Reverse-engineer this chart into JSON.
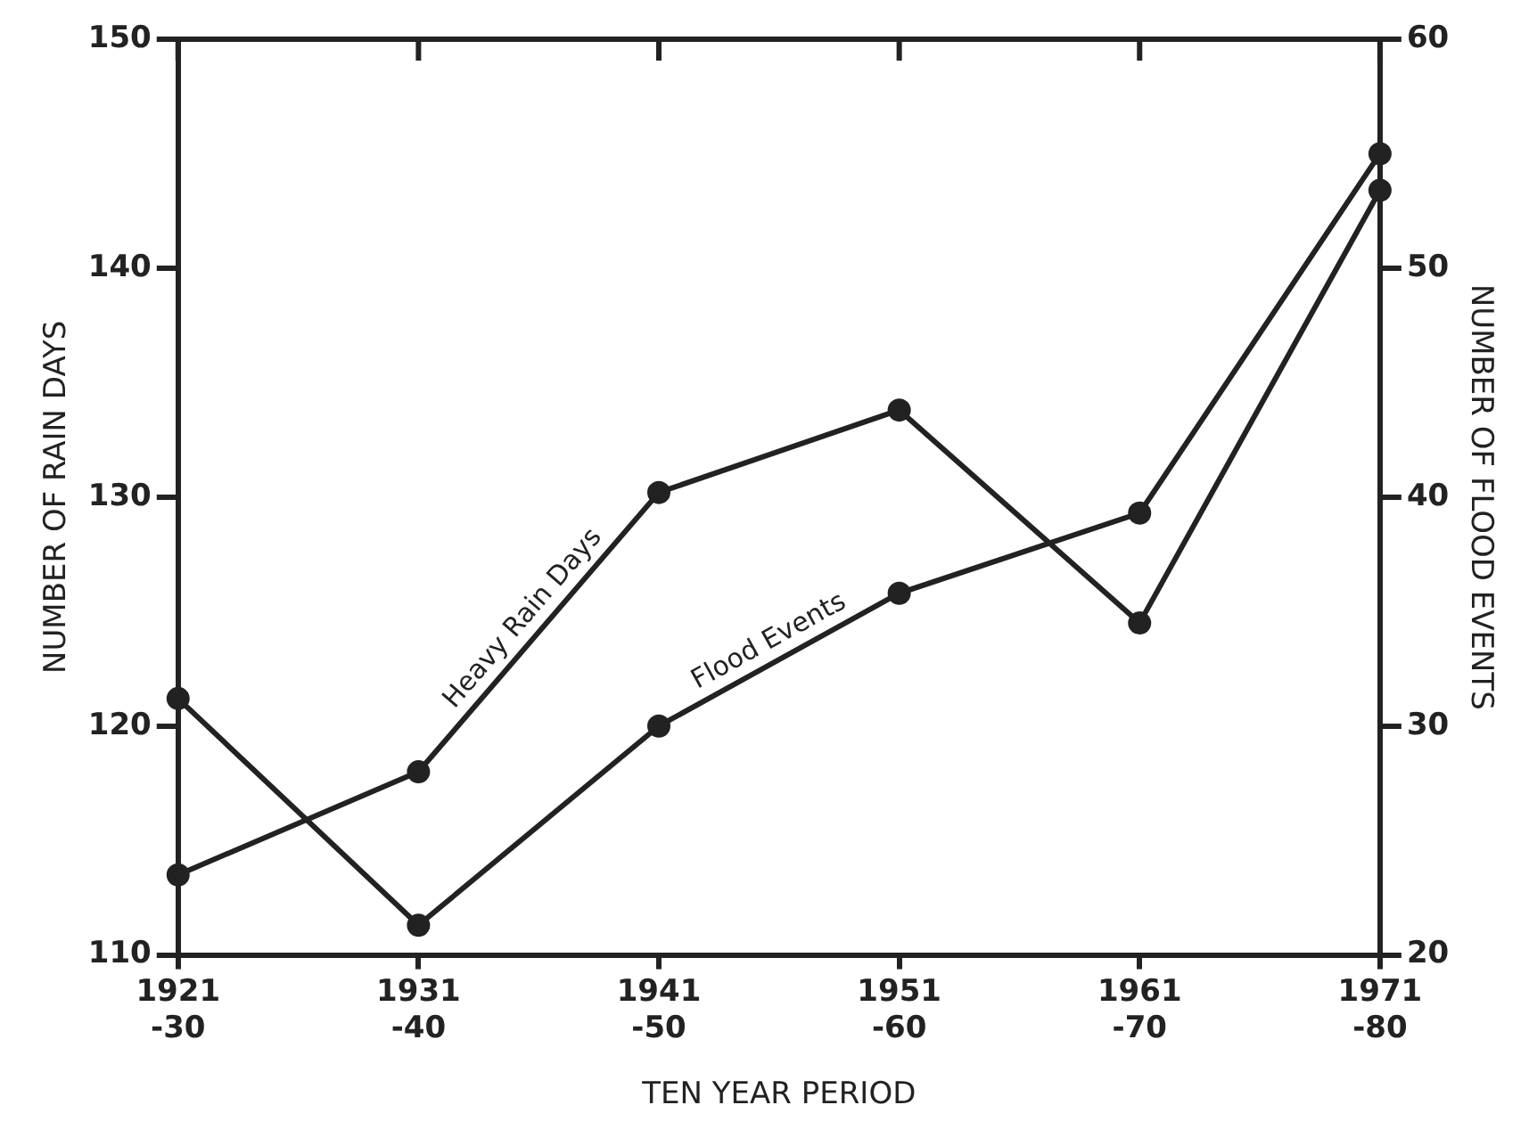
{
  "chart_data": {
    "type": "line",
    "xlabel": "TEN YEAR PERIOD",
    "ylabel": "NUMBER OF RAIN DAYS",
    "y2label": "NUMBER OF FLOOD EVENTS",
    "categories": [
      "1921 -30",
      "1931 -40",
      "1941 -50",
      "1951 -60",
      "1961 -70",
      "1971 -80"
    ],
    "series": [
      {
        "name": "Heavy Rain Days",
        "color": "#222222",
        "values": [
          113.5,
          118,
          130.2,
          133.8,
          124.5,
          143.4
        ]
      },
      {
        "name": "Flood Events",
        "color": "#222222",
        "axis": "y2",
        "values": [
          31.2,
          21.3,
          30,
          35.8,
          39.3,
          55
        ]
      }
    ],
    "ylim": [
      110,
      150
    ],
    "yticks": [
      110,
      120,
      130,
      140,
      150
    ],
    "y2lim": [
      20,
      60
    ],
    "y2ticks": [
      20,
      30,
      40,
      50,
      60
    ],
    "grid": false,
    "legend": false,
    "marker": "circle",
    "line_style": "solid"
  }
}
